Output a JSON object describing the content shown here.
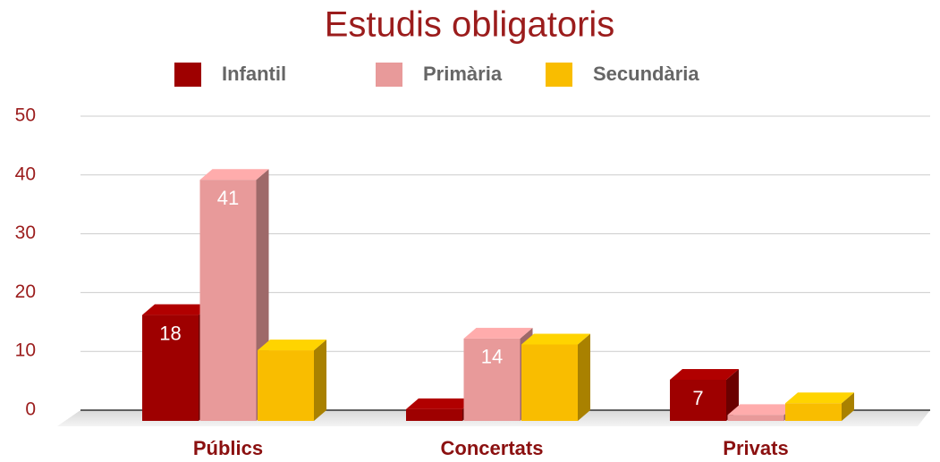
{
  "chart_data": {
    "type": "bar3d",
    "title": "Estudis obligatoris",
    "categories": [
      "Públics",
      "Concertats",
      "Privats"
    ],
    "series": [
      {
        "name": "Infantil",
        "color": "#9e0000",
        "values": [
          18,
          2,
          7
        ],
        "value_labels": [
          "18",
          null,
          "7"
        ]
      },
      {
        "name": "Primària",
        "color": "#e89a9a",
        "values": [
          41,
          14,
          1
        ],
        "value_labels": [
          "41",
          "14",
          null
        ]
      },
      {
        "name": "Secundària",
        "color": "#f9bd00",
        "values": [
          12,
          13,
          3
        ],
        "value_labels": [
          null,
          null,
          null
        ]
      }
    ],
    "ylim": [
      0,
      50
    ],
    "yticks": [
      0,
      10,
      20,
      30,
      40,
      50
    ],
    "grid": true,
    "legend": "top"
  }
}
